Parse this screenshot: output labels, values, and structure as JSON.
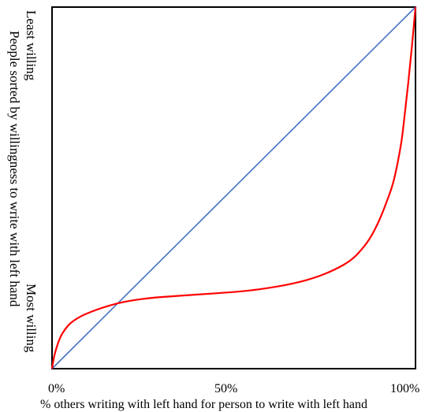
{
  "chart_data": {
    "type": "line",
    "xlabel": "% others writing with left hand for person to write with left hand",
    "ylabel": "People sorted by willingness to write with left hand",
    "y_top_label": "Least willing",
    "y_bottom_label": "Most willing",
    "x_ticks": [
      "0%",
      "50%",
      "100%"
    ],
    "xlim": [
      0,
      100
    ],
    "ylim": [
      0,
      100
    ],
    "grid": false,
    "series": [
      {
        "color": "#4472c4",
        "x": [
          0,
          100
        ],
        "y": [
          0,
          100
        ]
      },
      {
        "color": "#ff0000",
        "x": [
          0,
          0.5,
          1,
          2,
          3,
          5,
          8,
          12,
          16,
          20,
          25,
          30,
          40,
          50,
          55,
          60,
          65,
          70,
          75,
          80,
          83,
          86,
          88,
          90,
          92,
          94,
          96,
          97,
          98,
          99,
          100
        ],
        "y": [
          0,
          3,
          5,
          8,
          10,
          12.5,
          14.5,
          16.2,
          17.5,
          18.5,
          19.3,
          19.8,
          20.5,
          21.2,
          21.7,
          22.4,
          23.3,
          24.5,
          26.2,
          28.6,
          30.7,
          34,
          37,
          41,
          46,
          52,
          62,
          70,
          79,
          89,
          100
        ]
      }
    ]
  }
}
